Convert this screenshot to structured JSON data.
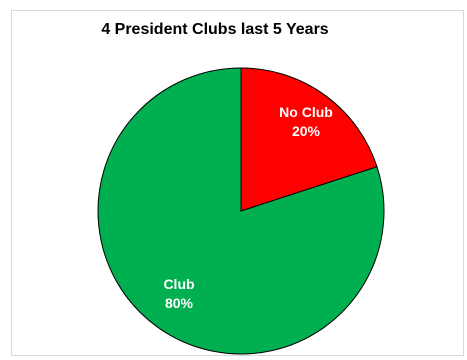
{
  "chart_data": {
    "type": "pie",
    "title": "4 President Clubs last 5 Years",
    "slices": [
      {
        "label": "No Club",
        "percent_label": "20%",
        "value": 20,
        "color": "#ff0000"
      },
      {
        "label": "Club",
        "percent_label": "80%",
        "value": 80,
        "color": "#00b050"
      }
    ],
    "start_angle_deg": 0,
    "direction": "clockwise",
    "legend": "none"
  }
}
